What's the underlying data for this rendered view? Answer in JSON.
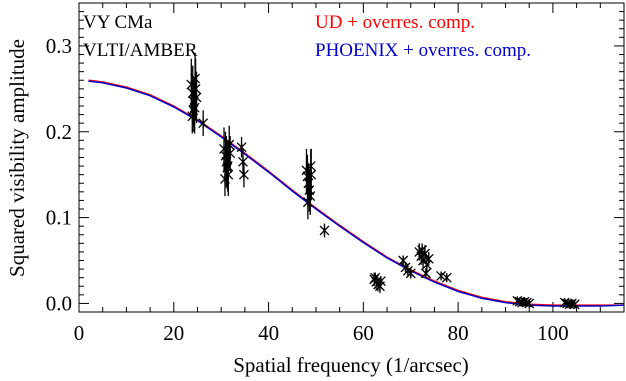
{
  "chart_data": {
    "type": "scatter",
    "xlabel": "Spatial frequency (1/arcsec)",
    "ylabel": "Squared visibility amplitude",
    "xlim": [
      0,
      115
    ],
    "ylim": [
      -0.01,
      0.35
    ],
    "xticks": [
      0,
      20,
      40,
      60,
      80,
      100
    ],
    "xtick_labels": [
      "0",
      "20",
      "40",
      "60",
      "80",
      "100"
    ],
    "yticks": [
      0.0,
      0.1,
      0.2,
      0.3
    ],
    "ytick_labels": [
      "0.0",
      "0.1",
      "0.2",
      "0.3"
    ],
    "grid": false,
    "annotations": [
      "VY CMa",
      "VLTI/AMBER"
    ],
    "legend_placement": "top-right",
    "series": [
      {
        "name": "UD + overres. comp.",
        "color": "#ff0000",
        "type": "line",
        "x": [
          2,
          5,
          10,
          15,
          20,
          25,
          30,
          35,
          40,
          45,
          50,
          55,
          60,
          65,
          70,
          75,
          80,
          85,
          90,
          95,
          100,
          105,
          110,
          115
        ],
        "values": [
          0.26,
          0.258,
          0.252,
          0.243,
          0.23,
          0.214,
          0.195,
          0.175,
          0.154,
          0.132,
          0.111,
          0.091,
          0.072,
          0.054,
          0.039,
          0.026,
          0.015,
          0.007,
          0.002,
          -0.001,
          -0.002,
          -0.002,
          -0.002,
          -0.002
        ]
      },
      {
        "name": "PHOENIX + overres. comp.",
        "color": "#0000cc",
        "type": "line",
        "x": [
          2,
          5,
          10,
          15,
          20,
          25,
          30,
          35,
          40,
          45,
          50,
          55,
          60,
          65,
          70,
          75,
          80,
          85,
          90,
          95,
          100,
          105,
          110,
          115
        ],
        "values": [
          0.259,
          0.257,
          0.251,
          0.242,
          0.229,
          0.213,
          0.194,
          0.174,
          0.153,
          0.131,
          0.11,
          0.09,
          0.071,
          0.053,
          0.038,
          0.025,
          0.014,
          0.006,
          0.001,
          -0.002,
          -0.003,
          -0.003,
          -0.003,
          -0.002
        ]
      },
      {
        "name": "",
        "color": "#000000",
        "type": "scatter",
        "points": [
          {
            "x": 23.7,
            "y": 0.255,
            "err": 0.03
          },
          {
            "x": 24.0,
            "y": 0.245,
            "err": 0.032
          },
          {
            "x": 24.2,
            "y": 0.235,
            "err": 0.028
          },
          {
            "x": 24.4,
            "y": 0.228,
            "err": 0.03
          },
          {
            "x": 24.6,
            "y": 0.25,
            "err": 0.035
          },
          {
            "x": 24.8,
            "y": 0.24,
            "err": 0.03
          },
          {
            "x": 24.1,
            "y": 0.225,
            "err": 0.025
          },
          {
            "x": 24.5,
            "y": 0.262,
            "err": 0.03
          },
          {
            "x": 23.9,
            "y": 0.218,
            "err": 0.02
          },
          {
            "x": 26.2,
            "y": 0.21,
            "err": 0.015
          },
          {
            "x": 30.6,
            "y": 0.18,
            "err": 0.025
          },
          {
            "x": 30.9,
            "y": 0.172,
            "err": 0.028
          },
          {
            "x": 31.1,
            "y": 0.165,
            "err": 0.03
          },
          {
            "x": 31.3,
            "y": 0.158,
            "err": 0.025
          },
          {
            "x": 31.5,
            "y": 0.15,
            "err": 0.025
          },
          {
            "x": 31.7,
            "y": 0.185,
            "err": 0.022
          },
          {
            "x": 30.8,
            "y": 0.145,
            "err": 0.02
          },
          {
            "x": 31.9,
            "y": 0.175,
            "err": 0.02
          },
          {
            "x": 31.4,
            "y": 0.16,
            "err": 0.03
          },
          {
            "x": 34.3,
            "y": 0.182,
            "err": 0.012
          },
          {
            "x": 34.6,
            "y": 0.165,
            "err": 0.015
          },
          {
            "x": 34.8,
            "y": 0.15,
            "err": 0.015
          },
          {
            "x": 48.0,
            "y": 0.155,
            "err": 0.025
          },
          {
            "x": 48.2,
            "y": 0.148,
            "err": 0.025
          },
          {
            "x": 48.4,
            "y": 0.14,
            "err": 0.022
          },
          {
            "x": 48.6,
            "y": 0.132,
            "err": 0.025
          },
          {
            "x": 48.8,
            "y": 0.125,
            "err": 0.022
          },
          {
            "x": 49.0,
            "y": 0.15,
            "err": 0.03
          },
          {
            "x": 48.3,
            "y": 0.118,
            "err": 0.02
          },
          {
            "x": 48.9,
            "y": 0.16,
            "err": 0.02
          },
          {
            "x": 51.8,
            "y": 0.085,
            "err": 0.008
          },
          {
            "x": 62.3,
            "y": 0.028,
            "err": 0.008
          },
          {
            "x": 62.7,
            "y": 0.025,
            "err": 0.008
          },
          {
            "x": 63.1,
            "y": 0.022,
            "err": 0.008
          },
          {
            "x": 63.5,
            "y": 0.02,
            "err": 0.008
          },
          {
            "x": 62.5,
            "y": 0.03,
            "err": 0.006
          },
          {
            "x": 63.7,
            "y": 0.026,
            "err": 0.006
          },
          {
            "x": 68.4,
            "y": 0.05,
            "err": 0.006
          },
          {
            "x": 68.9,
            "y": 0.042,
            "err": 0.006
          },
          {
            "x": 69.4,
            "y": 0.038,
            "err": 0.006
          },
          {
            "x": 70.0,
            "y": 0.035,
            "err": 0.006
          },
          {
            "x": 71.8,
            "y": 0.06,
            "err": 0.01
          },
          {
            "x": 72.2,
            "y": 0.055,
            "err": 0.01
          },
          {
            "x": 72.6,
            "y": 0.05,
            "err": 0.01
          },
          {
            "x": 73.0,
            "y": 0.058,
            "err": 0.01
          },
          {
            "x": 73.4,
            "y": 0.045,
            "err": 0.01
          },
          {
            "x": 72.4,
            "y": 0.062,
            "err": 0.008
          },
          {
            "x": 73.8,
            "y": 0.052,
            "err": 0.008
          },
          {
            "x": 73.2,
            "y": 0.035,
            "err": 0.006
          },
          {
            "x": 76.4,
            "y": 0.032,
            "err": 0.004
          },
          {
            "x": 77.6,
            "y": 0.03,
            "err": 0.004
          },
          {
            "x": 92.5,
            "y": 0.003,
            "err": 0.003
          },
          {
            "x": 93.0,
            "y": 0.002,
            "err": 0.003
          },
          {
            "x": 93.5,
            "y": 0.001,
            "err": 0.003
          },
          {
            "x": 94.0,
            "y": 0.002,
            "err": 0.003
          },
          {
            "x": 94.5,
            "y": 0.001,
            "err": 0.003
          },
          {
            "x": 95.0,
            "y": 0.0,
            "err": 0.003
          },
          {
            "x": 102.5,
            "y": 0.001,
            "err": 0.002
          },
          {
            "x": 103.0,
            "y": 0.0,
            "err": 0.002
          },
          {
            "x": 103.5,
            "y": -0.001,
            "err": 0.002
          },
          {
            "x": 104.0,
            "y": 0.0,
            "err": 0.002
          },
          {
            "x": 104.6,
            "y": -0.001,
            "err": 0.002
          }
        ]
      }
    ]
  }
}
